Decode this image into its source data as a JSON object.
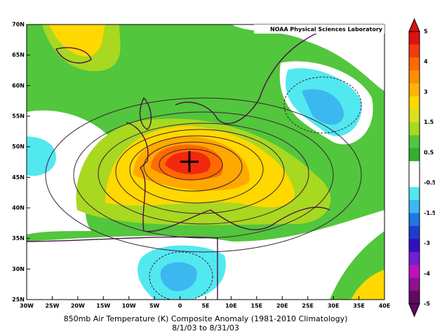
{
  "map": {
    "credit": "NOAA Physical Sciences Laboratory",
    "latitude_labels": [
      "70N",
      "65N",
      "60N",
      "55N",
      "50N",
      "45N",
      "40N",
      "35N",
      "30N",
      "25N"
    ],
    "longitude_labels": [
      "30W",
      "25W",
      "20W",
      "15W",
      "10W",
      "5W",
      "0",
      "5E",
      "10E",
      "15E",
      "20E",
      "25E",
      "30E",
      "35E",
      "40E"
    ],
    "caption": [
      "850mb Air Temperature (K) Composite Anomaly (1981-2010 Climatology)",
      "8/1/03  to 8/31/03"
    ]
  },
  "colorbar": {
    "labels": [
      "5",
      "4",
      "3",
      "1.5",
      "0.5",
      "-0.5",
      "-1.5",
      "-3",
      "-4",
      "-5"
    ]
  }
}
